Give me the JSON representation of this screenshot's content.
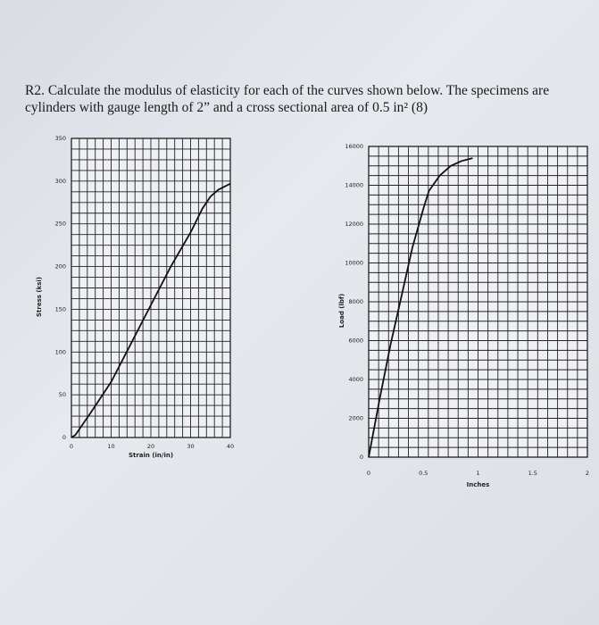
{
  "question": {
    "line1": "R2.  Calculate the modulus of elasticity for each of the curves shown below.  The specimens are",
    "line2": "cylinders with gauge length of 2” and a cross sectional area of 0.5 in² (8)"
  },
  "chart_data": [
    {
      "type": "line",
      "xlabel": "Strain (in/in)",
      "ylabel": "Stress (ksi)",
      "xlim": [
        0,
        40
      ],
      "ylim": [
        0,
        350
      ],
      "xticks": [
        "0",
        "10",
        "20",
        "30",
        "40"
      ],
      "yticks": [
        "0",
        "50",
        "100",
        "150",
        "200",
        "250",
        "300",
        "350"
      ],
      "grid": true,
      "x": [
        0,
        1,
        5,
        10,
        15,
        20,
        25,
        30,
        33,
        35,
        37,
        40
      ],
      "y": [
        0,
        3,
        30,
        65,
        110,
        155,
        200,
        240,
        268,
        282,
        290,
        297
      ]
    },
    {
      "type": "line",
      "xlabel": "Inches",
      "ylabel": "Load (lbf)",
      "xlim": [
        0,
        2
      ],
      "ylim": [
        0,
        16000
      ],
      "xticks": [
        "0",
        "0.5",
        "1",
        "1.5",
        "2"
      ],
      "yticks": [
        "0",
        "2000",
        "4000",
        "6000",
        "8000",
        "10000",
        "12000",
        "14000",
        "16000"
      ],
      "grid": true,
      "x": [
        0,
        0.1,
        0.2,
        0.3,
        0.4,
        0.5,
        0.55,
        0.65,
        0.75,
        0.85,
        0.95
      ],
      "y": [
        0,
        3000,
        5800,
        8300,
        10800,
        12800,
        13700,
        14500,
        15000,
        15250,
        15400
      ]
    }
  ]
}
